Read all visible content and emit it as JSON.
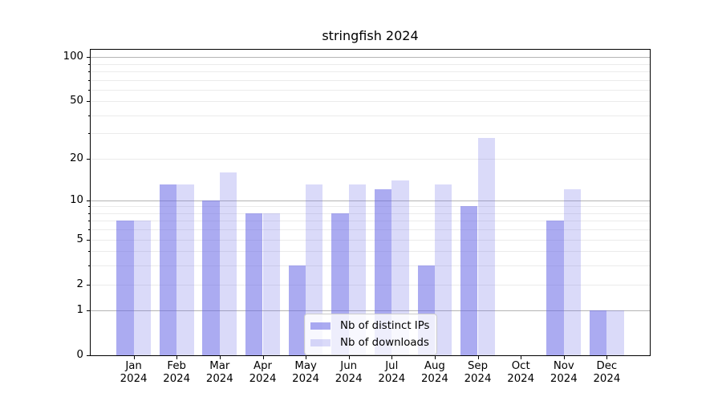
{
  "chart_data": {
    "type": "bar",
    "title": "stringfish 2024",
    "categories": [
      "Jan 2024",
      "Feb 2024",
      "Mar 2024",
      "Apr 2024",
      "May 2024",
      "Jun 2024",
      "Jul 2024",
      "Aug 2024",
      "Sep 2024",
      "Oct 2024",
      "Nov 2024",
      "Dec 2024"
    ],
    "x_tick_line1": [
      "Jan",
      "Feb",
      "Mar",
      "Apr",
      "May",
      "Jun",
      "Jul",
      "Aug",
      "Sep",
      "Oct",
      "Nov",
      "Dec"
    ],
    "x_tick_line2": "2024",
    "series": [
      {
        "name": "Nb of distinct IPs",
        "color": "rgba(102,102,230,0.55)",
        "values": [
          7,
          13,
          10,
          8,
          3,
          8,
          12,
          3,
          9,
          0,
          7,
          1
        ]
      },
      {
        "name": "Nb of downloads",
        "color": "rgba(102,102,230,0.24)",
        "values": [
          7,
          13,
          16,
          8,
          13,
          13,
          14,
          13,
          28,
          0,
          12,
          1
        ]
      }
    ],
    "xlabel": "",
    "ylabel": "",
    "yscale": "log1p",
    "ylim": [
      0,
      112
    ],
    "yticks": [
      0,
      1,
      2,
      5,
      10,
      20,
      50,
      100
    ],
    "major_gridlines": [
      1,
      10,
      100
    ],
    "minor_gridlines": [
      2,
      3,
      4,
      5,
      6,
      7,
      8,
      9,
      20,
      30,
      40,
      50,
      60,
      70,
      80,
      90
    ],
    "grid": true,
    "legend_position": "lower center",
    "bar_group_width": 0.8
  }
}
